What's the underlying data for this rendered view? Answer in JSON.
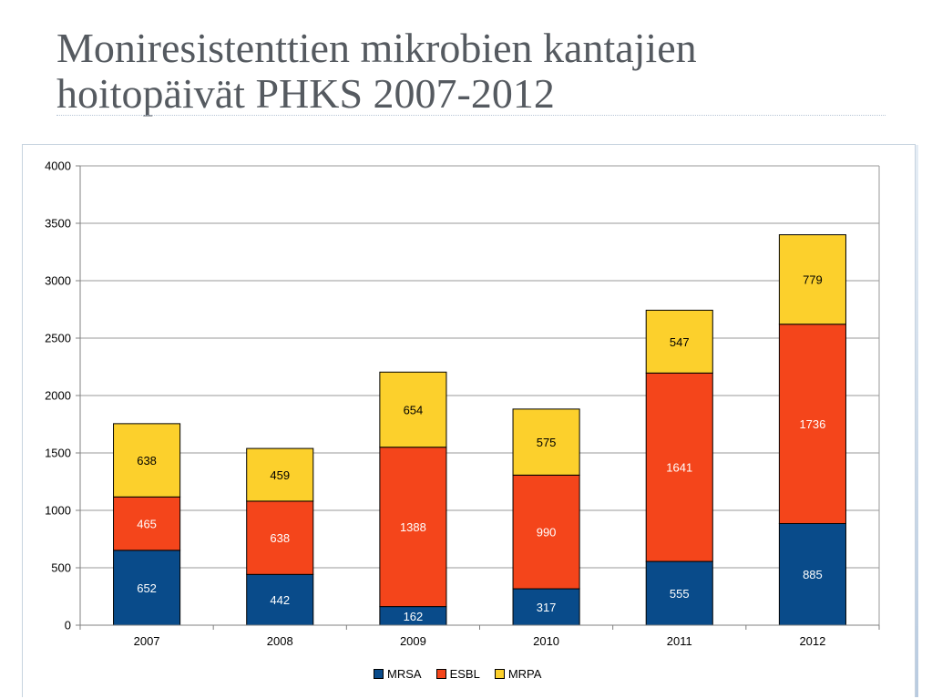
{
  "slide": {
    "title_line1": "Moniresistenttien mikrobien kantajien",
    "title_line2": "hoitopäivät PHKS 2007-2012"
  },
  "chart_data": {
    "type": "bar",
    "stacked": true,
    "categories": [
      "2007",
      "2008",
      "2009",
      "2010",
      "2011",
      "2012"
    ],
    "series": [
      {
        "name": "MRSA",
        "color": "#094b8a",
        "label_color": "#ffffff",
        "values": [
          652,
          442,
          162,
          317,
          555,
          885
        ]
      },
      {
        "name": "ESBL",
        "color": "#f4451b",
        "label_color": "#ffffff",
        "values": [
          465,
          638,
          1388,
          990,
          1641,
          1736
        ]
      },
      {
        "name": "MRPA",
        "color": "#fcd02c",
        "label_color": "#000000",
        "values": [
          638,
          459,
          654,
          575,
          547,
          779
        ]
      }
    ],
    "ylim": [
      0,
      4000
    ],
    "yticks": [
      0,
      500,
      1000,
      1500,
      2000,
      2500,
      3000,
      3500,
      4000
    ],
    "grid": true,
    "legend_position": "bottom"
  }
}
